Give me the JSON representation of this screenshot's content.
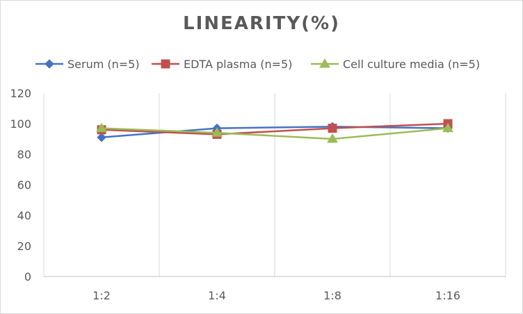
{
  "chart_data": {
    "type": "line",
    "title": "LINEARITY(%)",
    "xlabel": "",
    "ylabel": "",
    "categories": [
      "1:2",
      "1:4",
      "1:8",
      "1:16"
    ],
    "ylim": [
      0,
      120
    ],
    "yticks": [
      0,
      20,
      40,
      60,
      80,
      100,
      120
    ],
    "grid": "vertical",
    "legend_position": "top",
    "series": [
      {
        "name": "Serum (n=5)",
        "values": [
          91,
          97,
          98,
          97
        ],
        "color": "#4472c4",
        "marker": "diamond"
      },
      {
        "name": "EDTA plasma (n=5)",
        "values": [
          96,
          93,
          97,
          100
        ],
        "color": "#c0504d",
        "marker": "square"
      },
      {
        "name": "Cell culture media (n=5)",
        "values": [
          97,
          94,
          90,
          97
        ],
        "color": "#9bbb59",
        "marker": "triangle"
      }
    ]
  }
}
